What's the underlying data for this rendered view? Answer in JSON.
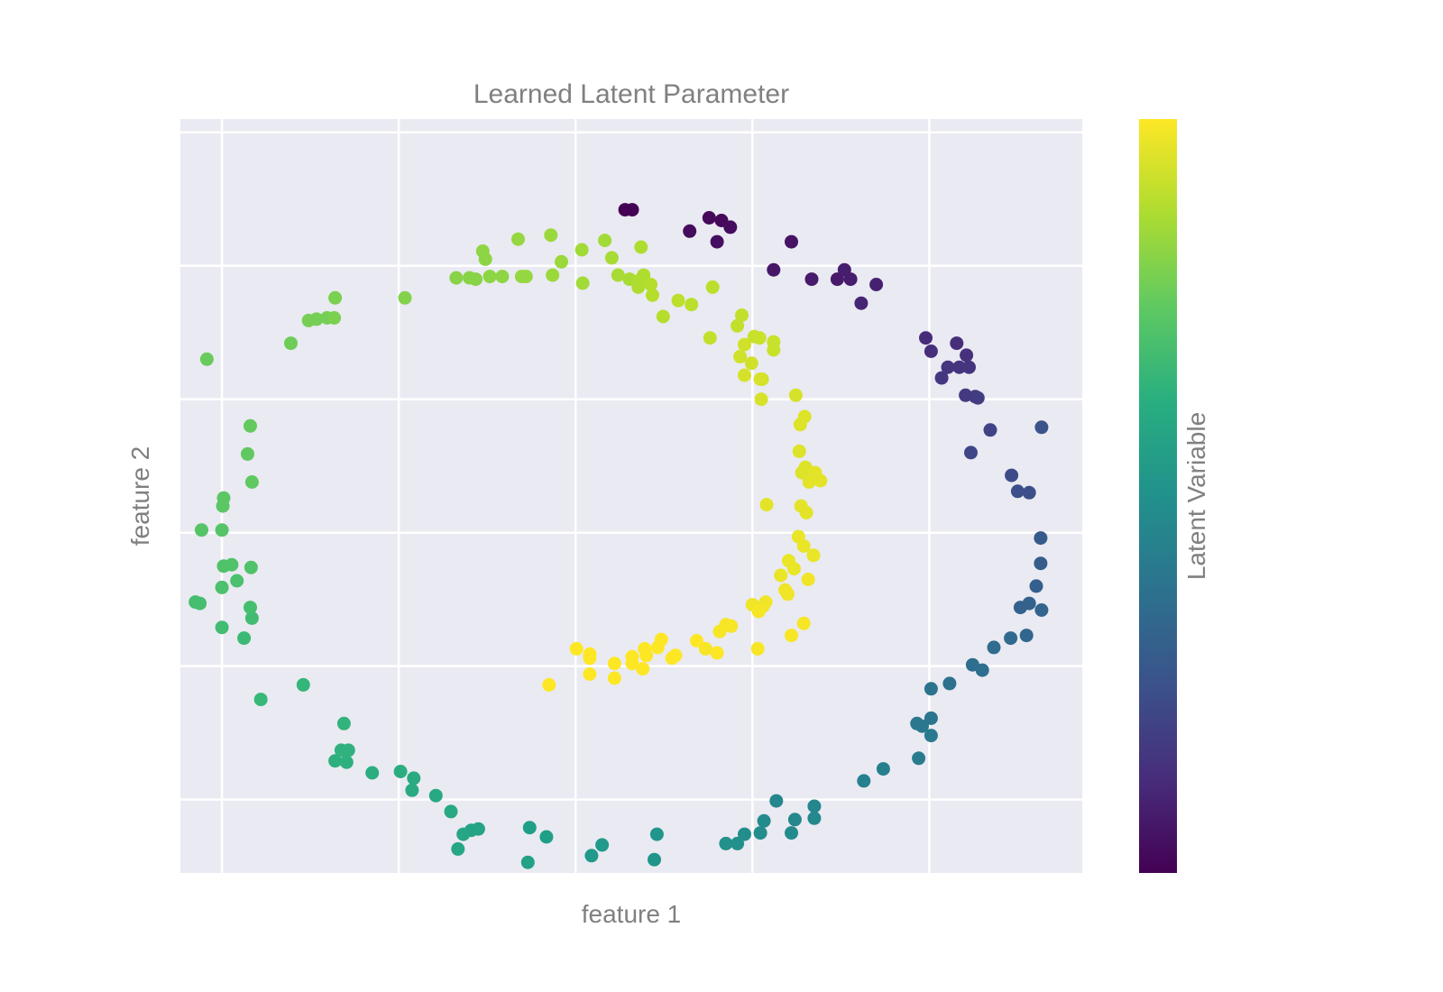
{
  "chart_data": {
    "type": "scatter",
    "title": "Learned Latent Parameter",
    "xlabel": "feature 1",
    "ylabel": "feature 2",
    "colorbar_label": "Latent Variable",
    "colormap": "viridis",
    "grid": true,
    "xticks": [
      -4,
      -2,
      0,
      2,
      4
    ],
    "yticks": [
      -3,
      -2,
      -1,
      0,
      1,
      2
    ],
    "xlim": [
      -4.47,
      5.73
    ],
    "ylim": [
      -3.55,
      2.1
    ],
    "clim": [
      0,
      1
    ],
    "points": [
      {
        "x": 0.56,
        "y": 1.42,
        "c": 0.0
      },
      {
        "x": 0.64,
        "y": 1.42,
        "c": 0.0
      },
      {
        "x": 1.51,
        "y": 1.36,
        "c": 0.02
      },
      {
        "x": 1.65,
        "y": 1.34,
        "c": 0.02
      },
      {
        "x": 1.75,
        "y": 1.29,
        "c": 0.03
      },
      {
        "x": 1.29,
        "y": 1.26,
        "c": 0.03
      },
      {
        "x": 1.6,
        "y": 1.18,
        "c": 0.04
      },
      {
        "x": 2.44,
        "y": 1.18,
        "c": 0.05
      },
      {
        "x": 2.24,
        "y": 0.97,
        "c": 0.06
      },
      {
        "x": 2.67,
        "y": 0.9,
        "c": 0.07
      },
      {
        "x": 2.96,
        "y": 0.9,
        "c": 0.07
      },
      {
        "x": 3.04,
        "y": 0.97,
        "c": 0.08
      },
      {
        "x": 3.11,
        "y": 0.9,
        "c": 0.08
      },
      {
        "x": 3.4,
        "y": 0.86,
        "c": 0.09
      },
      {
        "x": 3.23,
        "y": 0.72,
        "c": 0.1
      },
      {
        "x": 3.96,
        "y": 0.46,
        "c": 0.12
      },
      {
        "x": 4.02,
        "y": 0.36,
        "c": 0.13
      },
      {
        "x": 4.31,
        "y": 0.42,
        "c": 0.13
      },
      {
        "x": 4.42,
        "y": 0.33,
        "c": 0.14
      },
      {
        "x": 4.21,
        "y": 0.24,
        "c": 0.15
      },
      {
        "x": 4.34,
        "y": 0.24,
        "c": 0.15
      },
      {
        "x": 4.45,
        "y": 0.24,
        "c": 0.15
      },
      {
        "x": 4.14,
        "y": 0.16,
        "c": 0.16
      },
      {
        "x": 4.41,
        "y": 0.03,
        "c": 0.17
      },
      {
        "x": 4.52,
        "y": 0.02,
        "c": 0.17
      },
      {
        "x": 4.55,
        "y": 0.01,
        "c": 0.18
      },
      {
        "x": 4.69,
        "y": -0.23,
        "c": 0.2
      },
      {
        "x": 4.47,
        "y": -0.4,
        "c": 0.21
      },
      {
        "x": 4.93,
        "y": -0.57,
        "c": 0.23
      },
      {
        "x": 5.0,
        "y": -0.69,
        "c": 0.24
      },
      {
        "x": 5.13,
        "y": -0.7,
        "c": 0.24
      },
      {
        "x": 5.27,
        "y": -0.21,
        "c": 0.26
      },
      {
        "x": 5.26,
        "y": -1.04,
        "c": 0.28
      },
      {
        "x": 5.26,
        "y": -1.23,
        "c": 0.29
      },
      {
        "x": 5.21,
        "y": -1.4,
        "c": 0.3
      },
      {
        "x": 5.13,
        "y": -1.53,
        "c": 0.31
      },
      {
        "x": 5.03,
        "y": -1.56,
        "c": 0.31
      },
      {
        "x": 5.27,
        "y": -1.58,
        "c": 0.32
      },
      {
        "x": 5.1,
        "y": -1.77,
        "c": 0.33
      },
      {
        "x": 4.92,
        "y": -1.79,
        "c": 0.34
      },
      {
        "x": 4.73,
        "y": -1.86,
        "c": 0.35
      },
      {
        "x": 4.49,
        "y": -1.99,
        "c": 0.36
      },
      {
        "x": 4.6,
        "y": -2.03,
        "c": 0.36
      },
      {
        "x": 4.23,
        "y": -2.13,
        "c": 0.37
      },
      {
        "x": 4.02,
        "y": -2.17,
        "c": 0.38
      },
      {
        "x": 4.02,
        "y": -2.39,
        "c": 0.39
      },
      {
        "x": 3.86,
        "y": -2.43,
        "c": 0.4
      },
      {
        "x": 3.92,
        "y": -2.45,
        "c": 0.4
      },
      {
        "x": 4.02,
        "y": -2.52,
        "c": 0.41
      },
      {
        "x": 3.88,
        "y": -2.69,
        "c": 0.42
      },
      {
        "x": 3.48,
        "y": -2.77,
        "c": 0.43
      },
      {
        "x": 3.26,
        "y": -2.86,
        "c": 0.44
      },
      {
        "x": 2.27,
        "y": -3.01,
        "c": 0.46
      },
      {
        "x": 2.7,
        "y": -3.05,
        "c": 0.46
      },
      {
        "x": 2.48,
        "y": -3.15,
        "c": 0.47
      },
      {
        "x": 2.7,
        "y": -3.14,
        "c": 0.47
      },
      {
        "x": 2.13,
        "y": -3.16,
        "c": 0.48
      },
      {
        "x": 2.44,
        "y": -3.25,
        "c": 0.48
      },
      {
        "x": 2.09,
        "y": -3.25,
        "c": 0.49
      },
      {
        "x": 1.91,
        "y": -3.26,
        "c": 0.49
      },
      {
        "x": 1.83,
        "y": -3.33,
        "c": 0.5
      },
      {
        "x": 1.7,
        "y": -3.33,
        "c": 0.5
      },
      {
        "x": 0.92,
        "y": -3.26,
        "c": 0.52
      },
      {
        "x": 0.89,
        "y": -3.45,
        "c": 0.52
      },
      {
        "x": 0.3,
        "y": -3.34,
        "c": 0.54
      },
      {
        "x": 0.18,
        "y": -3.42,
        "c": 0.54
      },
      {
        "x": -0.33,
        "y": -3.28,
        "c": 0.56
      },
      {
        "x": -0.52,
        "y": -3.21,
        "c": 0.56
      },
      {
        "x": -0.54,
        "y": -3.47,
        "c": 0.57
      },
      {
        "x": -1.1,
        "y": -3.22,
        "c": 0.58
      },
      {
        "x": -1.18,
        "y": -3.23,
        "c": 0.58
      },
      {
        "x": -1.27,
        "y": -3.26,
        "c": 0.59
      },
      {
        "x": -1.33,
        "y": -3.37,
        "c": 0.59
      },
      {
        "x": -1.41,
        "y": -3.09,
        "c": 0.6
      },
      {
        "x": -1.58,
        "y": -2.97,
        "c": 0.6
      },
      {
        "x": -1.83,
        "y": -2.84,
        "c": 0.61
      },
      {
        "x": -1.85,
        "y": -2.93,
        "c": 0.61
      },
      {
        "x": -1.98,
        "y": -2.79,
        "c": 0.62
      },
      {
        "x": -2.3,
        "y": -2.8,
        "c": 0.62
      },
      {
        "x": -2.59,
        "y": -2.72,
        "c": 0.63
      },
      {
        "x": -2.72,
        "y": -2.71,
        "c": 0.63
      },
      {
        "x": -2.65,
        "y": -2.63,
        "c": 0.64
      },
      {
        "x": -2.57,
        "y": -2.63,
        "c": 0.64
      },
      {
        "x": -2.62,
        "y": -2.43,
        "c": 0.65
      },
      {
        "x": -3.08,
        "y": -2.14,
        "c": 0.66
      },
      {
        "x": -3.56,
        "y": -2.25,
        "c": 0.67
      },
      {
        "x": -3.75,
        "y": -1.79,
        "c": 0.68
      },
      {
        "x": -4.0,
        "y": -1.71,
        "c": 0.69
      },
      {
        "x": -3.66,
        "y": -1.64,
        "c": 0.69
      },
      {
        "x": -3.68,
        "y": -1.56,
        "c": 0.7
      },
      {
        "x": -4.25,
        "y": -1.53,
        "c": 0.7
      },
      {
        "x": -4.3,
        "y": -1.52,
        "c": 0.7
      },
      {
        "x": -4.0,
        "y": -1.41,
        "c": 0.71
      },
      {
        "x": -3.83,
        "y": -1.36,
        "c": 0.71
      },
      {
        "x": -3.67,
        "y": -1.26,
        "c": 0.72
      },
      {
        "x": -3.98,
        "y": -1.25,
        "c": 0.72
      },
      {
        "x": -3.89,
        "y": -1.24,
        "c": 0.72
      },
      {
        "x": -4.0,
        "y": -0.98,
        "c": 0.73
      },
      {
        "x": -4.23,
        "y": -0.98,
        "c": 0.73
      },
      {
        "x": -3.98,
        "y": -0.74,
        "c": 0.74
      },
      {
        "x": -3.99,
        "y": -0.8,
        "c": 0.74
      },
      {
        "x": -3.66,
        "y": -0.62,
        "c": 0.75
      },
      {
        "x": -3.71,
        "y": -0.41,
        "c": 0.75
      },
      {
        "x": -3.68,
        "y": -0.2,
        "c": 0.76
      },
      {
        "x": -4.17,
        "y": 0.3,
        "c": 0.77
      },
      {
        "x": -3.22,
        "y": 0.42,
        "c": 0.78
      },
      {
        "x": -3.02,
        "y": 0.59,
        "c": 0.79
      },
      {
        "x": -2.93,
        "y": 0.6,
        "c": 0.79
      },
      {
        "x": -2.81,
        "y": 0.61,
        "c": 0.79
      },
      {
        "x": -2.73,
        "y": 0.61,
        "c": 0.8
      },
      {
        "x": -2.72,
        "y": 0.76,
        "c": 0.8
      },
      {
        "x": -1.93,
        "y": 0.76,
        "c": 0.81
      },
      {
        "x": -1.35,
        "y": 0.91,
        "c": 0.82
      },
      {
        "x": -1.2,
        "y": 0.91,
        "c": 0.82
      },
      {
        "x": -1.13,
        "y": 0.9,
        "c": 0.82
      },
      {
        "x": -0.97,
        "y": 0.92,
        "c": 0.83
      },
      {
        "x": -0.83,
        "y": 0.92,
        "c": 0.83
      },
      {
        "x": -1.02,
        "y": 1.05,
        "c": 0.83
      },
      {
        "x": -1.05,
        "y": 1.11,
        "c": 0.83
      },
      {
        "x": -0.61,
        "y": 0.92,
        "c": 0.84
      },
      {
        "x": -0.56,
        "y": 0.92,
        "c": 0.84
      },
      {
        "x": -0.65,
        "y": 1.2,
        "c": 0.84
      },
      {
        "x": -0.28,
        "y": 1.23,
        "c": 0.85
      },
      {
        "x": -0.26,
        "y": 0.93,
        "c": 0.85
      },
      {
        "x": -0.16,
        "y": 1.03,
        "c": 0.85
      },
      {
        "x": 0.07,
        "y": 1.12,
        "c": 0.86
      },
      {
        "x": 0.08,
        "y": 0.87,
        "c": 0.86
      },
      {
        "x": 0.33,
        "y": 1.19,
        "c": 0.86
      },
      {
        "x": 0.41,
        "y": 1.06,
        "c": 0.87
      },
      {
        "x": 0.48,
        "y": 0.93,
        "c": 0.87
      },
      {
        "x": 0.61,
        "y": 0.9,
        "c": 0.87
      },
      {
        "x": 0.72,
        "y": 0.89,
        "c": 0.88
      },
      {
        "x": 0.77,
        "y": 0.93,
        "c": 0.88
      },
      {
        "x": 0.74,
        "y": 1.14,
        "c": 0.88
      },
      {
        "x": 0.71,
        "y": 0.84,
        "c": 0.88
      },
      {
        "x": 0.85,
        "y": 0.86,
        "c": 0.89
      },
      {
        "x": 0.87,
        "y": 0.78,
        "c": 0.89
      },
      {
        "x": 0.99,
        "y": 0.62,
        "c": 0.89
      },
      {
        "x": 1.16,
        "y": 0.74,
        "c": 0.9
      },
      {
        "x": 1.31,
        "y": 0.71,
        "c": 0.9
      },
      {
        "x": 1.55,
        "y": 0.84,
        "c": 0.9
      },
      {
        "x": 1.88,
        "y": 0.63,
        "c": 0.91
      },
      {
        "x": 1.52,
        "y": 0.46,
        "c": 0.91
      },
      {
        "x": 1.83,
        "y": 0.55,
        "c": 0.91
      },
      {
        "x": 2.02,
        "y": 0.47,
        "c": 0.92
      },
      {
        "x": 2.08,
        "y": 0.46,
        "c": 0.92
      },
      {
        "x": 2.24,
        "y": 0.43,
        "c": 0.92
      },
      {
        "x": 2.24,
        "y": 0.37,
        "c": 0.92
      },
      {
        "x": 1.91,
        "y": 0.41,
        "c": 0.93
      },
      {
        "x": 1.86,
        "y": 0.32,
        "c": 0.93
      },
      {
        "x": 1.99,
        "y": 0.27,
        "c": 0.93
      },
      {
        "x": 2.11,
        "y": 0.15,
        "c": 0.93
      },
      {
        "x": 1.91,
        "y": 0.18,
        "c": 0.94
      },
      {
        "x": 2.09,
        "y": 0.15,
        "c": 0.94
      },
      {
        "x": 2.1,
        "y": 0.0,
        "c": 0.94
      },
      {
        "x": 2.49,
        "y": 0.03,
        "c": 0.94
      },
      {
        "x": 2.59,
        "y": -0.13,
        "c": 0.95
      },
      {
        "x": 2.54,
        "y": -0.19,
        "c": 0.95
      },
      {
        "x": 2.53,
        "y": -0.39,
        "c": 0.95
      },
      {
        "x": 2.6,
        "y": -0.51,
        "c": 0.95
      },
      {
        "x": 2.56,
        "y": -0.55,
        "c": 0.95
      },
      {
        "x": 2.71,
        "y": -0.55,
        "c": 0.96
      },
      {
        "x": 2.64,
        "y": -0.62,
        "c": 0.96
      },
      {
        "x": 2.77,
        "y": -0.61,
        "c": 0.96
      },
      {
        "x": 2.55,
        "y": -0.8,
        "c": 0.96
      },
      {
        "x": 2.16,
        "y": -0.79,
        "c": 0.96
      },
      {
        "x": 2.61,
        "y": -0.85,
        "c": 0.96
      },
      {
        "x": 2.52,
        "y": -1.03,
        "c": 0.97
      },
      {
        "x": 2.58,
        "y": -1.1,
        "c": 0.97
      },
      {
        "x": 2.69,
        "y": -1.17,
        "c": 0.97
      },
      {
        "x": 2.41,
        "y": -1.21,
        "c": 0.97
      },
      {
        "x": 2.47,
        "y": -1.27,
        "c": 0.97
      },
      {
        "x": 2.32,
        "y": -1.32,
        "c": 0.97
      },
      {
        "x": 2.37,
        "y": -1.43,
        "c": 0.98
      },
      {
        "x": 2.4,
        "y": -1.46,
        "c": 0.98
      },
      {
        "x": 2.63,
        "y": -1.35,
        "c": 0.98
      },
      {
        "x": 2.0,
        "y": -1.54,
        "c": 0.98
      },
      {
        "x": 2.15,
        "y": -1.52,
        "c": 0.98
      },
      {
        "x": 2.12,
        "y": -1.55,
        "c": 0.98
      },
      {
        "x": 2.07,
        "y": -1.59,
        "c": 0.99
      },
      {
        "x": 2.58,
        "y": -1.68,
        "c": 0.99
      },
      {
        "x": 2.44,
        "y": -1.77,
        "c": 0.99
      },
      {
        "x": 2.06,
        "y": -1.87,
        "c": 0.99
      },
      {
        "x": 1.63,
        "y": -1.74,
        "c": 0.99
      },
      {
        "x": 1.7,
        "y": -1.69,
        "c": 0.99
      },
      {
        "x": 1.76,
        "y": -1.7,
        "c": 0.99
      },
      {
        "x": 1.47,
        "y": -1.87,
        "c": 0.99
      },
      {
        "x": 1.37,
        "y": -1.81,
        "c": 1.0
      },
      {
        "x": 1.6,
        "y": -1.9,
        "c": 1.0
      },
      {
        "x": 0.97,
        "y": -1.8,
        "c": 1.0
      },
      {
        "x": 0.93,
        "y": -1.86,
        "c": 1.0
      },
      {
        "x": 0.78,
        "y": -1.87,
        "c": 1.0
      },
      {
        "x": 0.8,
        "y": -1.92,
        "c": 1.0
      },
      {
        "x": 1.13,
        "y": -1.92,
        "c": 1.0
      },
      {
        "x": 1.09,
        "y": -1.94,
        "c": 1.0
      },
      {
        "x": 0.64,
        "y": -1.93,
        "c": 1.0
      },
      {
        "x": 0.64,
        "y": -1.98,
        "c": 1.0
      },
      {
        "x": 0.76,
        "y": -2.02,
        "c": 1.0
      },
      {
        "x": 0.44,
        "y": -1.98,
        "c": 1.0
      },
      {
        "x": 0.44,
        "y": -2.09,
        "c": 1.0
      },
      {
        "x": 0.16,
        "y": -1.94,
        "c": 1.0
      },
      {
        "x": 0.16,
        "y": -2.06,
        "c": 1.0
      },
      {
        "x": 0.01,
        "y": -1.87,
        "c": 1.0
      },
      {
        "x": 0.16,
        "y": -1.91,
        "c": 1.0
      },
      {
        "x": -0.3,
        "y": -2.14,
        "c": 1.0
      }
    ]
  }
}
